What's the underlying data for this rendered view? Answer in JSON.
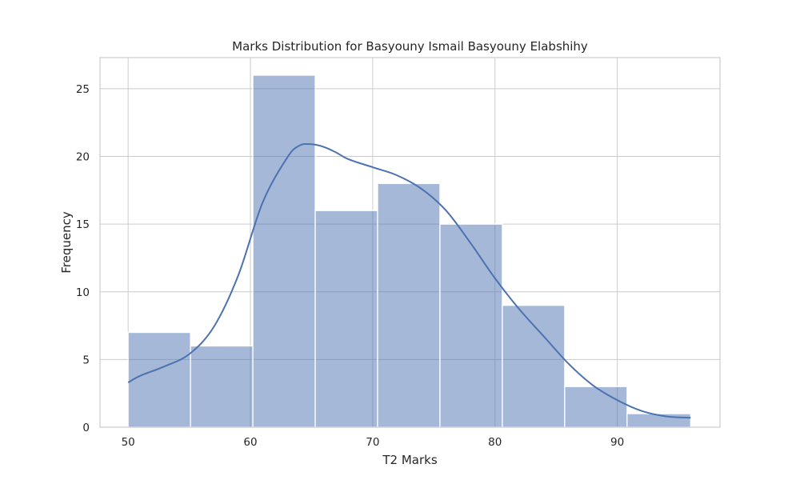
{
  "chart_data": {
    "type": "histogram",
    "title": "Marks Distribution for Basyouny Ismail Basyouny Elabshihy",
    "xlabel": "T2 Marks",
    "ylabel": "Frequency",
    "xlim": [
      47.7,
      98.4
    ],
    "ylim": [
      0,
      27.3
    ],
    "xticks": [
      50,
      60,
      70,
      80,
      90
    ],
    "yticks": [
      0,
      5,
      10,
      15,
      20,
      25
    ],
    "grid": true,
    "bins": [
      {
        "x0": 50.0,
        "x1": 55.1,
        "count": 7
      },
      {
        "x0": 55.1,
        "x1": 60.2,
        "count": 6
      },
      {
        "x0": 60.2,
        "x1": 65.3,
        "count": 26
      },
      {
        "x0": 65.3,
        "x1": 70.4,
        "count": 16
      },
      {
        "x0": 70.4,
        "x1": 75.5,
        "count": 18
      },
      {
        "x0": 75.5,
        "x1": 80.6,
        "count": 15
      },
      {
        "x0": 80.6,
        "x1": 85.7,
        "count": 9
      },
      {
        "x0": 85.7,
        "x1": 90.8,
        "count": 3
      },
      {
        "x0": 90.8,
        "x1": 96.0,
        "count": 1
      }
    ],
    "kde": {
      "x": [
        50,
        51,
        53,
        55,
        57,
        59,
        61,
        63,
        64,
        65,
        66,
        67,
        68,
        70,
        72,
        74,
        76,
        78,
        80,
        82,
        84,
        86,
        88,
        90,
        92,
        94,
        96
      ],
      "y": [
        3.3,
        3.8,
        4.5,
        5.4,
        7.4,
        11.2,
        16.6,
        19.9,
        20.8,
        20.9,
        20.7,
        20.3,
        19.8,
        19.2,
        18.6,
        17.6,
        16.0,
        13.6,
        11.0,
        8.7,
        6.7,
        4.7,
        3.1,
        2.0,
        1.2,
        0.8,
        0.7
      ]
    }
  }
}
